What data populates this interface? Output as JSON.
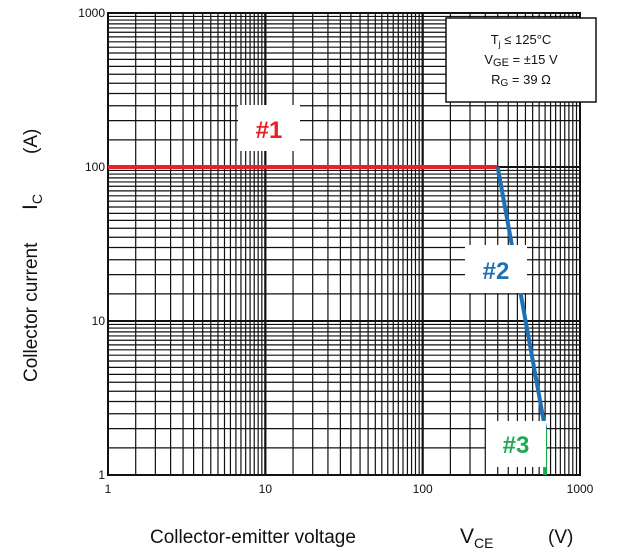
{
  "chart_data": {
    "type": "line",
    "xlabel": "Collector-emitter voltage",
    "xsymbol": "V",
    "xsymbol_sub": "CE",
    "xunit": "(V)",
    "ylabel": "Collector current",
    "ysymbol": "I",
    "ysymbol_sub": "C",
    "yunit": "(A)",
    "xscale": "log",
    "yscale": "log",
    "xlim": [
      1,
      1000
    ],
    "ylim": [
      1,
      1000
    ],
    "grid": true,
    "x_ticks": [
      "1",
      "10",
      "100",
      "1000"
    ],
    "y_ticks": [
      "1",
      "10",
      "100",
      "1000"
    ],
    "series": [
      {
        "name": "#1",
        "color": "#e8202a",
        "x": [
          1,
          300
        ],
        "y": [
          100,
          100
        ]
      },
      {
        "name": "#2",
        "color": "#1f6fb5",
        "x": [
          300,
          600
        ],
        "y": [
          100,
          2
        ]
      },
      {
        "name": "#3",
        "color": "#1bab4d",
        "x": [
          600,
          600
        ],
        "y": [
          2,
          1
        ]
      }
    ],
    "conditions": {
      "line1": {
        "sym": "T",
        "sub": "j",
        "rest": " ≤ 125°C"
      },
      "line2": {
        "sym": "V",
        "sub": "GE",
        "rest": " = ±15 V"
      },
      "line3": {
        "sym": "R",
        "sub": "G",
        "rest": " = 39 Ω"
      }
    },
    "legend_placement": "top-right"
  }
}
